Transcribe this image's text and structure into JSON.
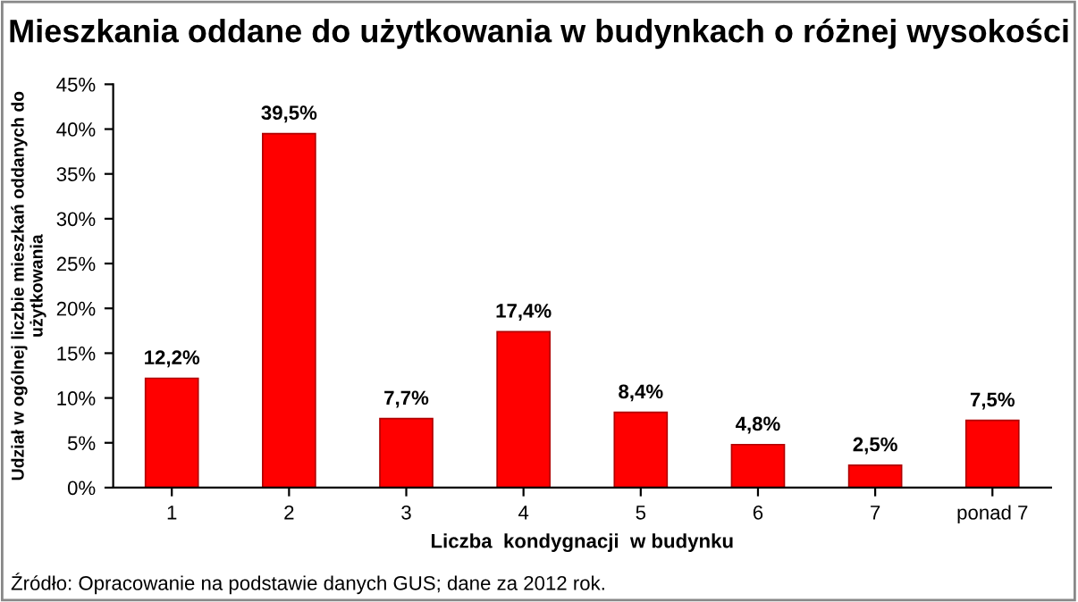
{
  "chart_data": {
    "type": "bar",
    "title": "Mieszkania oddane do użytkowania w budynkach o różnej wysokości",
    "xlabel": "Liczba  kondygnacji  w budynku",
    "ylabel": "Udział w ogólnej liczbie mieszkań oddanych do\nużytkowania",
    "categories": [
      "1",
      "2",
      "3",
      "4",
      "5",
      "6",
      "7",
      "ponad 7"
    ],
    "values": [
      12.2,
      39.5,
      7.7,
      17.4,
      8.4,
      4.8,
      2.5,
      7.5
    ],
    "value_labels": [
      "12,2%",
      "39,5%",
      "7,7%",
      "17,4%",
      "8,4%",
      "4,8%",
      "2,5%",
      "7,5%"
    ],
    "color": "#ff0000",
    "ylim": [
      0,
      45
    ],
    "yticks": [
      {
        "value": 0,
        "label": "0%"
      },
      {
        "value": 5,
        "label": "5%"
      },
      {
        "value": 10,
        "label": "10%"
      },
      {
        "value": 15,
        "label": "15%"
      },
      {
        "value": 20,
        "label": "20%"
      },
      {
        "value": 25,
        "label": "25%"
      },
      {
        "value": 30,
        "label": "30%"
      },
      {
        "value": 35,
        "label": "35%"
      },
      {
        "value": 40,
        "label": "40%"
      },
      {
        "value": 45,
        "label": "45%"
      }
    ],
    "grid": false,
    "legend": false,
    "annotations": [
      "Źródło: Opracowanie na podstawie danych GUS; dane za 2012 rok."
    ]
  }
}
